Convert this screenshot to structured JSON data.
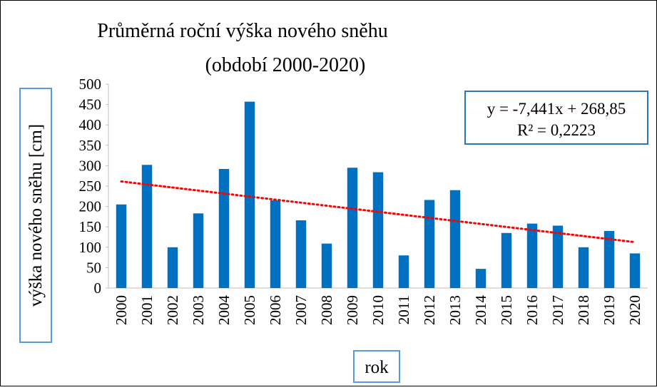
{
  "chart_data": {
    "type": "bar",
    "title": "Průměrná roční výška nového sněhu",
    "subtitle": "(období 2000-2020)",
    "y_label": "výška nového sněhu [cm]",
    "x_label": "rok",
    "categories": [
      "2000",
      "2001",
      "2002",
      "2003",
      "2004",
      "2005",
      "2006",
      "2007",
      "2008",
      "2009",
      "2010",
      "2011",
      "2012",
      "2013",
      "2014",
      "2015",
      "2016",
      "2017",
      "2018",
      "2019",
      "2020"
    ],
    "values": [
      205,
      302,
      100,
      183,
      292,
      457,
      215,
      166,
      109,
      295,
      284,
      80,
      216,
      240,
      47,
      135,
      158,
      153,
      100,
      140,
      85
    ],
    "color": "#0070c0",
    "ylim": [
      0,
      500
    ],
    "yticks": [
      0,
      50,
      100,
      150,
      200,
      250,
      300,
      350,
      400,
      450,
      500
    ],
    "grid": false,
    "trendline": {
      "slope": -7.441,
      "intercept": 268.85,
      "color": "#ff0000",
      "equation": "y = -7,441x + 268,85",
      "r2_label": "R² = 0,2223"
    }
  }
}
